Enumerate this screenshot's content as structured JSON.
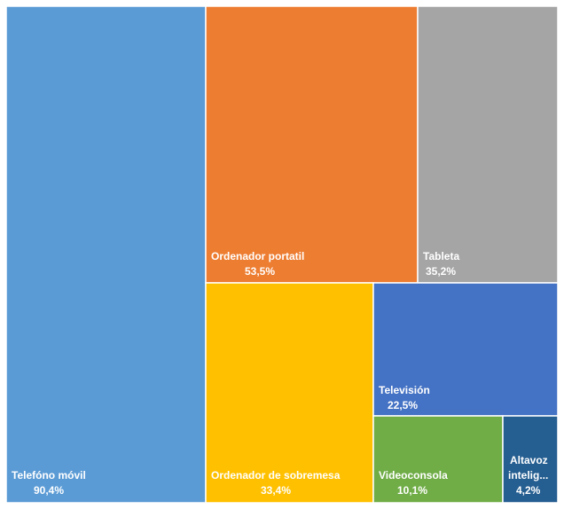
{
  "chart_data": {
    "type": "treemap",
    "title": "",
    "value_format": "percent",
    "items": [
      {
        "label": "Telefóno móvil",
        "value_label": "90,4%",
        "value": 90.4,
        "color": "#5B9BD5"
      },
      {
        "label": "Ordenador portatil",
        "value_label": "53,5%",
        "value": 53.5,
        "color": "#ED7D31"
      },
      {
        "label": "Tableta",
        "value_label": "35,2%",
        "value": 35.2,
        "color": "#A5A5A5"
      },
      {
        "label": "Ordenador de sobremesa",
        "value_label": "33,4%",
        "value": 33.4,
        "color": "#FFC000"
      },
      {
        "label": "Televisión",
        "value_label": "22,5%",
        "value": 22.5,
        "color": "#4472C4"
      },
      {
        "label": "Videoconsola",
        "value_label": "10,1%",
        "value": 10.1,
        "color": "#70AD47"
      },
      {
        "label_lines": [
          "Altavoz",
          "intelig..."
        ],
        "value_label": "4,2%",
        "value": 4.2,
        "color": "#255E91"
      }
    ]
  }
}
